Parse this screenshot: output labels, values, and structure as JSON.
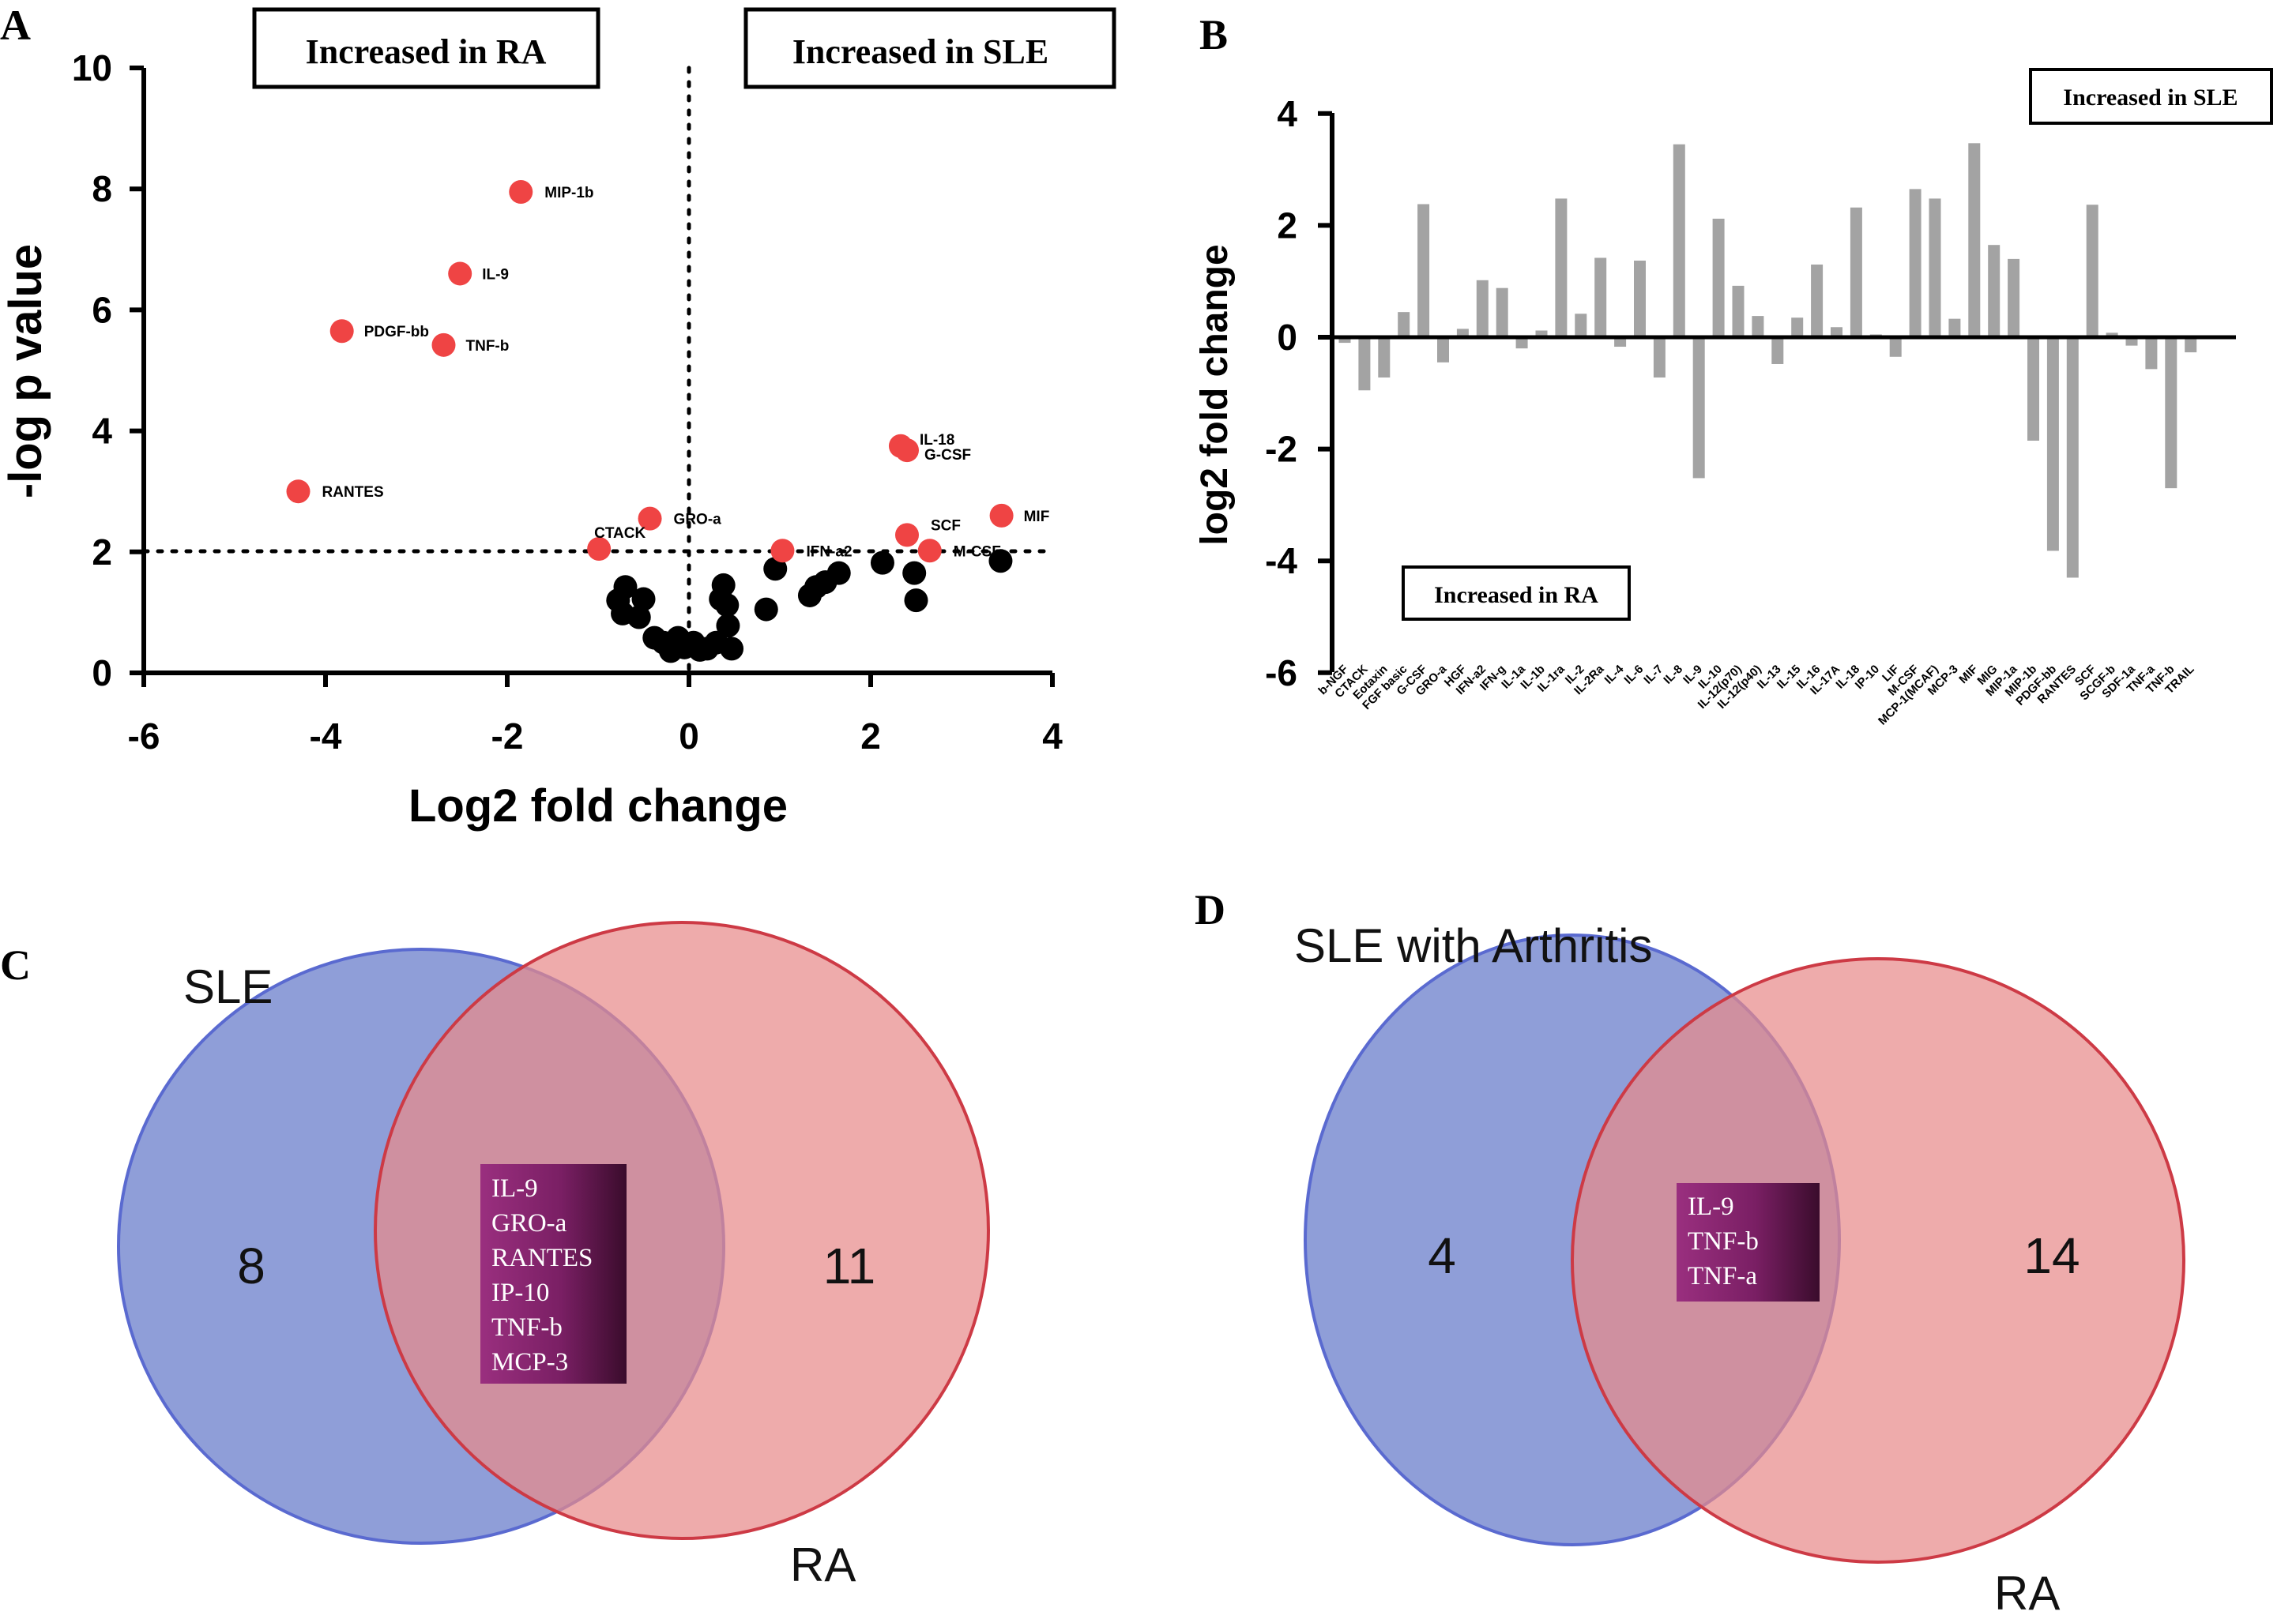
{
  "panels": {
    "a": "A",
    "b": "B",
    "c": "C",
    "d": "D"
  },
  "chart_data": [
    {
      "type": "scatter",
      "panel": "A",
      "xlabel": "Log2 fold change",
      "ylabel": "-log p value",
      "xlim": [
        -6,
        4
      ],
      "ylim": [
        0,
        10
      ],
      "xticks": [
        "-6",
        "-4",
        "-2",
        "0",
        "2",
        "4"
      ],
      "yticks": [
        "0",
        "2",
        "4",
        "6",
        "8",
        "10"
      ],
      "threshold_y": 2,
      "threshold_x": 0,
      "box_left": "Increased in RA",
      "box_right": "Increased in SLE",
      "colors": {
        "significant": "#ef4444",
        "non_significant": "#000000"
      },
      "significant": [
        {
          "label": "MIP-1b",
          "x": -1.85,
          "y": 7.95
        },
        {
          "label": "IL-9",
          "x": -2.52,
          "y": 6.6
        },
        {
          "label": "PDGF-bb",
          "x": -3.82,
          "y": 5.65
        },
        {
          "label": "TNF-b",
          "x": -2.7,
          "y": 5.42
        },
        {
          "label": "RANTES",
          "x": -4.3,
          "y": 3.0
        },
        {
          "label": "GRO-a",
          "x": -0.43,
          "y": 2.55
        },
        {
          "label": "CTACK",
          "x": -0.99,
          "y": 2.05
        },
        {
          "label": "IL-18",
          "x": 2.33,
          "y": 3.75
        },
        {
          "label": "G-CSF",
          "x": 2.4,
          "y": 3.68
        },
        {
          "label": "MIF",
          "x": 3.44,
          "y": 2.6
        },
        {
          "label": "SCF",
          "x": 2.4,
          "y": 2.28
        },
        {
          "label": "IFN-a2",
          "x": 1.03,
          "y": 2.02
        },
        {
          "label": "M-CSF",
          "x": 2.65,
          "y": 2.02
        }
      ],
      "non_significant": [
        {
          "x": -0.7,
          "y": 1.42
        },
        {
          "x": -0.78,
          "y": 1.2
        },
        {
          "x": -0.5,
          "y": 1.22
        },
        {
          "x": -0.55,
          "y": 0.92
        },
        {
          "x": -0.73,
          "y": 0.98
        },
        {
          "x": -0.38,
          "y": 0.58
        },
        {
          "x": -0.28,
          "y": 0.5
        },
        {
          "x": -0.2,
          "y": 0.36
        },
        {
          "x": -0.12,
          "y": 0.58
        },
        {
          "x": -0.05,
          "y": 0.42
        },
        {
          "x": 0.05,
          "y": 0.5
        },
        {
          "x": 0.12,
          "y": 0.38
        },
        {
          "x": 0.2,
          "y": 0.4
        },
        {
          "x": 0.3,
          "y": 0.5
        },
        {
          "x": 0.38,
          "y": 1.45
        },
        {
          "x": 0.42,
          "y": 1.12
        },
        {
          "x": 0.35,
          "y": 1.22
        },
        {
          "x": 0.43,
          "y": 0.78
        },
        {
          "x": 0.47,
          "y": 0.4
        },
        {
          "x": 0.85,
          "y": 1.05
        },
        {
          "x": 0.95,
          "y": 1.72
        },
        {
          "x": 1.33,
          "y": 1.28
        },
        {
          "x": 1.4,
          "y": 1.42
        },
        {
          "x": 1.5,
          "y": 1.5
        },
        {
          "x": 1.65,
          "y": 1.65
        },
        {
          "x": 2.13,
          "y": 1.82
        },
        {
          "x": 2.48,
          "y": 1.65
        },
        {
          "x": 2.5,
          "y": 1.2
        },
        {
          "x": 3.43,
          "y": 1.85
        }
      ]
    },
    {
      "type": "bar",
      "panel": "B",
      "ylabel": "log2 fold change",
      "ylim": [
        -6,
        4
      ],
      "yticks": [
        "-6",
        "-4",
        "-2",
        "0",
        "2",
        "4"
      ],
      "box_top": "Increased in SLE",
      "box_bottom": "Increased in RA",
      "bar_color": "#a3a3a3",
      "categories": [
        "b-NGF",
        "CTACK",
        "Eotaxin",
        "FGF basic",
        "G-CSF",
        "GRO-a",
        "HGF",
        "IFN-a2",
        "IFN-g",
        "IL-1a",
        "IL-1b",
        "IL-1ra",
        "IL-2",
        "IL-2Ra",
        "IL-4",
        "IL-6",
        "IL-7",
        "IL-8",
        "IL-9",
        "IL-10",
        "IL-12(p70)",
        "IL-12(p40)",
        "IL-13",
        "IL-15",
        "IL-16",
        "IL-17A",
        "IL-18",
        "IP-10",
        "LIF",
        "M-CSF",
        "MCP-1(MCAF)",
        "MCP-3",
        "MIF",
        "MIG",
        "MIP-1a",
        "MIP-1b",
        "PDGF-bb",
        "RANTES",
        "SCF",
        "SCGF-b",
        "SDF-1a",
        "TNF-a",
        "TNF-b",
        "TRAIL"
      ],
      "values": [
        -0.1,
        -0.95,
        -0.72,
        0.45,
        2.38,
        -0.45,
        0.15,
        1.02,
        0.88,
        -0.2,
        0.12,
        2.48,
        0.42,
        1.42,
        -0.17,
        1.37,
        -0.72,
        3.45,
        -2.52,
        2.12,
        0.92,
        0.38,
        -0.48,
        0.35,
        1.3,
        0.18,
        2.32,
        0.05,
        -0.35,
        2.65,
        2.48,
        0.33,
        3.47,
        1.65,
        1.4,
        -1.85,
        -3.82,
        -4.3,
        2.37,
        0.08,
        -0.15,
        -0.57,
        -2.7,
        -0.27
      ]
    }
  ],
  "venn_c": {
    "left_label": "SLE",
    "right_label": "RA",
    "left_count": "8",
    "right_count": "11",
    "shared": [
      "IL-9",
      "GRO-a",
      "RANTES",
      "IP-10",
      "TNF-b",
      "MCP-3"
    ],
    "colors": {
      "left": "#8f9ed8",
      "right": "#e78b8b",
      "overlap": "#a85a78",
      "box": "#7a1f64"
    }
  },
  "venn_d": {
    "left_label": "SLE with Arthritis",
    "right_label": "RA",
    "left_count": "4",
    "right_count": "14",
    "shared": [
      "IL-9",
      "TNF-b",
      "TNF-a"
    ],
    "colors": {
      "left": "#8f9ed8",
      "right": "#e78b8b",
      "overlap": "#a85a78",
      "box": "#7a1f64"
    }
  }
}
